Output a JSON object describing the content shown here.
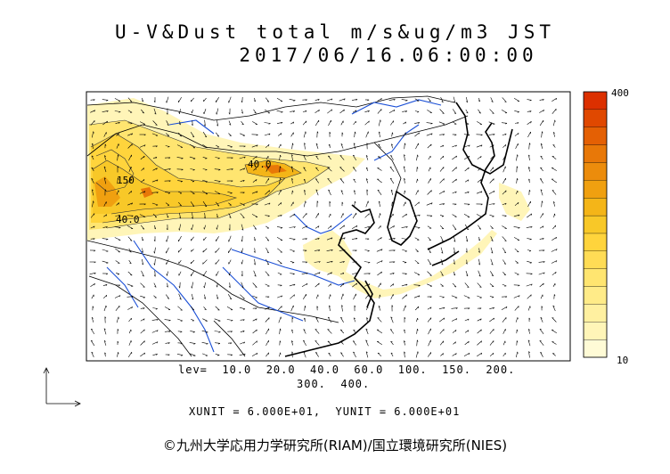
{
  "title": "U-V&Dust total m/s&ug/m3 JST",
  "datetime": "2017/06/16.06:00:00",
  "colorbar": {
    "max_label": "400",
    "min_label": "10",
    "colors": [
      "#fffbd6",
      "#fff5b8",
      "#fff0a0",
      "#ffeb88",
      "#ffe570",
      "#ffdc55",
      "#ffd43c",
      "#f8c828",
      "#f4b518",
      "#f0a010",
      "#ec8c0c",
      "#e87808",
      "#e46004",
      "#e04800",
      "#dc3000"
    ]
  },
  "contour_labels": [
    "40.0",
    "150",
    "40.0"
  ],
  "levels_text": "lev=  10.0  20.0  40.0  60.0  100.  150.  200.",
  "levels_text2": "300.  400.",
  "units_text": "XUNIT = 6.000E+01,  YUNIT = 6.000E+01",
  "credit": "©九州大学応用力学研究所(RIAM)/国立環境研究所(NIES)",
  "colors": {
    "coast": "#000000",
    "river": "#1a4fd6",
    "vector": "#000000"
  }
}
